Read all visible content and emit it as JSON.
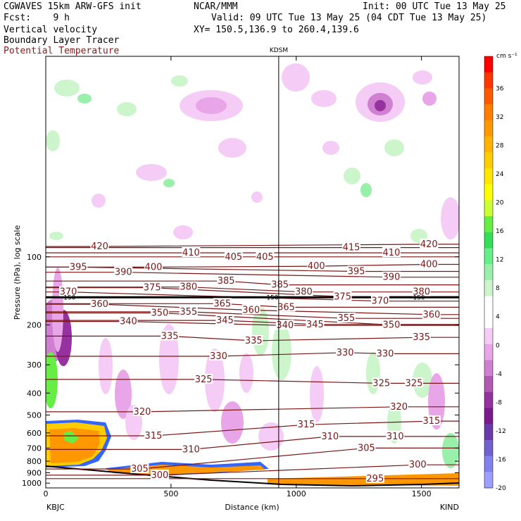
{
  "header": {
    "model": "CGWAVES 15km ARW-GFS init",
    "org": "NCAR/MMM",
    "init": "Init: 00 UTC Tue 13 May 25",
    "fcst": "Fcst:    9 h",
    "valid": "Valid: 09 UTC Tue 13 May 25 (04 CDT Tue 13 May 25)",
    "fields": [
      "Vertical velocity",
      "Boundary Layer Tracer"
    ],
    "field_red": "Potential Temperature",
    "xy": "XY= 150.5,136.9 to 260.4,139.6"
  },
  "chart_data": {
    "type": "heatmap",
    "title": "KDSM",
    "xlabel": "Distance (km)",
    "ylabel": "Pressure (hPa), log scale",
    "x_ticks": [
      0,
      500,
      1000,
      1500
    ],
    "x_range": [
      0,
      1650
    ],
    "y_ticks": [
      100,
      200,
      300,
      400,
      500,
      600,
      700,
      800,
      900,
      1000
    ],
    "y_range": [
      1050,
      13
    ],
    "y_scale": "log",
    "endpoint_left": "KBJC",
    "endpoint_right": "KIND",
    "marker_distance_km": 930,
    "colorbar": {
      "unit": "cm s⁻¹",
      "tick_labels": [
        "36",
        "32",
        "28",
        "24",
        "20",
        "16",
        "12",
        "8",
        "4",
        "0",
        "-4",
        "-8",
        "-12",
        "-16",
        "-20"
      ],
      "colors": [
        "#ff0000",
        "#ff3600",
        "#ff5a00",
        "#ff7e00",
        "#ff9800",
        "#ffb200",
        "#ffcc00",
        "#ffe600",
        "#ffff00",
        "#ccff33",
        "#66ee44",
        "#33dd55",
        "#66ee88",
        "#99f0aa",
        "#ccf5cc",
        "#ffffff",
        "#ffffff",
        "#f5ccf5",
        "#e8a6e8",
        "#d080d0",
        "#b25ab2",
        "#9632a0",
        "#7a1a8c",
        "#6a3aaa",
        "#7060d0",
        "#8080f0",
        "#9e9eff"
      ]
    },
    "theta_labels": [
      {
        "v": 420,
        "x": 215,
        "p": 90
      },
      {
        "v": 410,
        "x": 580,
        "p": 96
      },
      {
        "v": 405,
        "x": 750,
        "p": 100
      },
      {
        "v": 405,
        "x": 875,
        "p": 100
      },
      {
        "v": 415,
        "x": 1220,
        "p": 91
      },
      {
        "v": 410,
        "x": 1380,
        "p": 96
      },
      {
        "v": 420,
        "x": 1530,
        "p": 88
      },
      {
        "v": 395,
        "x": 130,
        "p": 111
      },
      {
        "v": 390,
        "x": 310,
        "p": 117
      },
      {
        "v": 400,
        "x": 430,
        "p": 111
      },
      {
        "v": 385,
        "x": 720,
        "p": 128
      },
      {
        "v": 385,
        "x": 935,
        "p": 133
      },
      {
        "v": 400,
        "x": 1080,
        "p": 110
      },
      {
        "v": 395,
        "x": 1240,
        "p": 116
      },
      {
        "v": 390,
        "x": 1380,
        "p": 123
      },
      {
        "v": 400,
        "x": 1530,
        "p": 108
      },
      {
        "v": 370,
        "x": 90,
        "p": 143
      },
      {
        "v": 375,
        "x": 425,
        "p": 137
      },
      {
        "v": 380,
        "x": 570,
        "p": 136
      },
      {
        "v": 380,
        "x": 1030,
        "p": 143
      },
      {
        "v": 375,
        "x": 1185,
        "p": 150
      },
      {
        "v": 370,
        "x": 1335,
        "p": 157
      },
      {
        "v": 380,
        "x": 1500,
        "p": 143
      },
      {
        "v": 360,
        "x": 215,
        "p": 162
      },
      {
        "v": 365,
        "x": 705,
        "p": 161
      },
      {
        "v": 360,
        "x": 820,
        "p": 172
      },
      {
        "v": 365,
        "x": 960,
        "p": 167
      },
      {
        "v": 350,
        "x": 455,
        "p": 177
      },
      {
        "v": 355,
        "x": 570,
        "p": 175
      },
      {
        "v": 355,
        "x": 1200,
        "p": 187
      },
      {
        "v": 360,
        "x": 1540,
        "p": 180
      },
      {
        "v": 340,
        "x": 330,
        "p": 193
      },
      {
        "v": 345,
        "x": 715,
        "p": 191
      },
      {
        "v": 340,
        "x": 955,
        "p": 201
      },
      {
        "v": 345,
        "x": 1075,
        "p": 199
      },
      {
        "v": 350,
        "x": 1380,
        "p": 200
      },
      {
        "v": 335,
        "x": 495,
        "p": 224
      },
      {
        "v": 335,
        "x": 830,
        "p": 235
      },
      {
        "v": 335,
        "x": 1500,
        "p": 227
      },
      {
        "v": 330,
        "x": 690,
        "p": 275
      },
      {
        "v": 330,
        "x": 1195,
        "p": 265
      },
      {
        "v": 330,
        "x": 1355,
        "p": 268
      },
      {
        "v": 325,
        "x": 630,
        "p": 348
      },
      {
        "v": 325,
        "x": 1340,
        "p": 362
      },
      {
        "v": 325,
        "x": 1470,
        "p": 362
      },
      {
        "v": 320,
        "x": 385,
        "p": 484
      },
      {
        "v": 320,
        "x": 1410,
        "p": 460
      },
      {
        "v": 315,
        "x": 430,
        "p": 618
      },
      {
        "v": 315,
        "x": 1040,
        "p": 552
      },
      {
        "v": 315,
        "x": 1540,
        "p": 532
      },
      {
        "v": 310,
        "x": 580,
        "p": 710
      },
      {
        "v": 310,
        "x": 1135,
        "p": 622
      },
      {
        "v": 310,
        "x": 1395,
        "p": 622
      },
      {
        "v": 305,
        "x": 375,
        "p": 866
      },
      {
        "v": 305,
        "x": 1280,
        "p": 700
      },
      {
        "v": 300,
        "x": 455,
        "p": 922
      },
      {
        "v": 300,
        "x": 1485,
        "p": 830
      },
      {
        "v": 295,
        "x": 1315,
        "p": 955
      }
    ],
    "tracer_marks": [
      {
        "v": 150,
        "x": 95,
        "p": 151
      },
      {
        "v": 150,
        "x": 905,
        "p": 151
      },
      {
        "v": 150,
        "x": 1490,
        "p": 151
      }
    ]
  }
}
